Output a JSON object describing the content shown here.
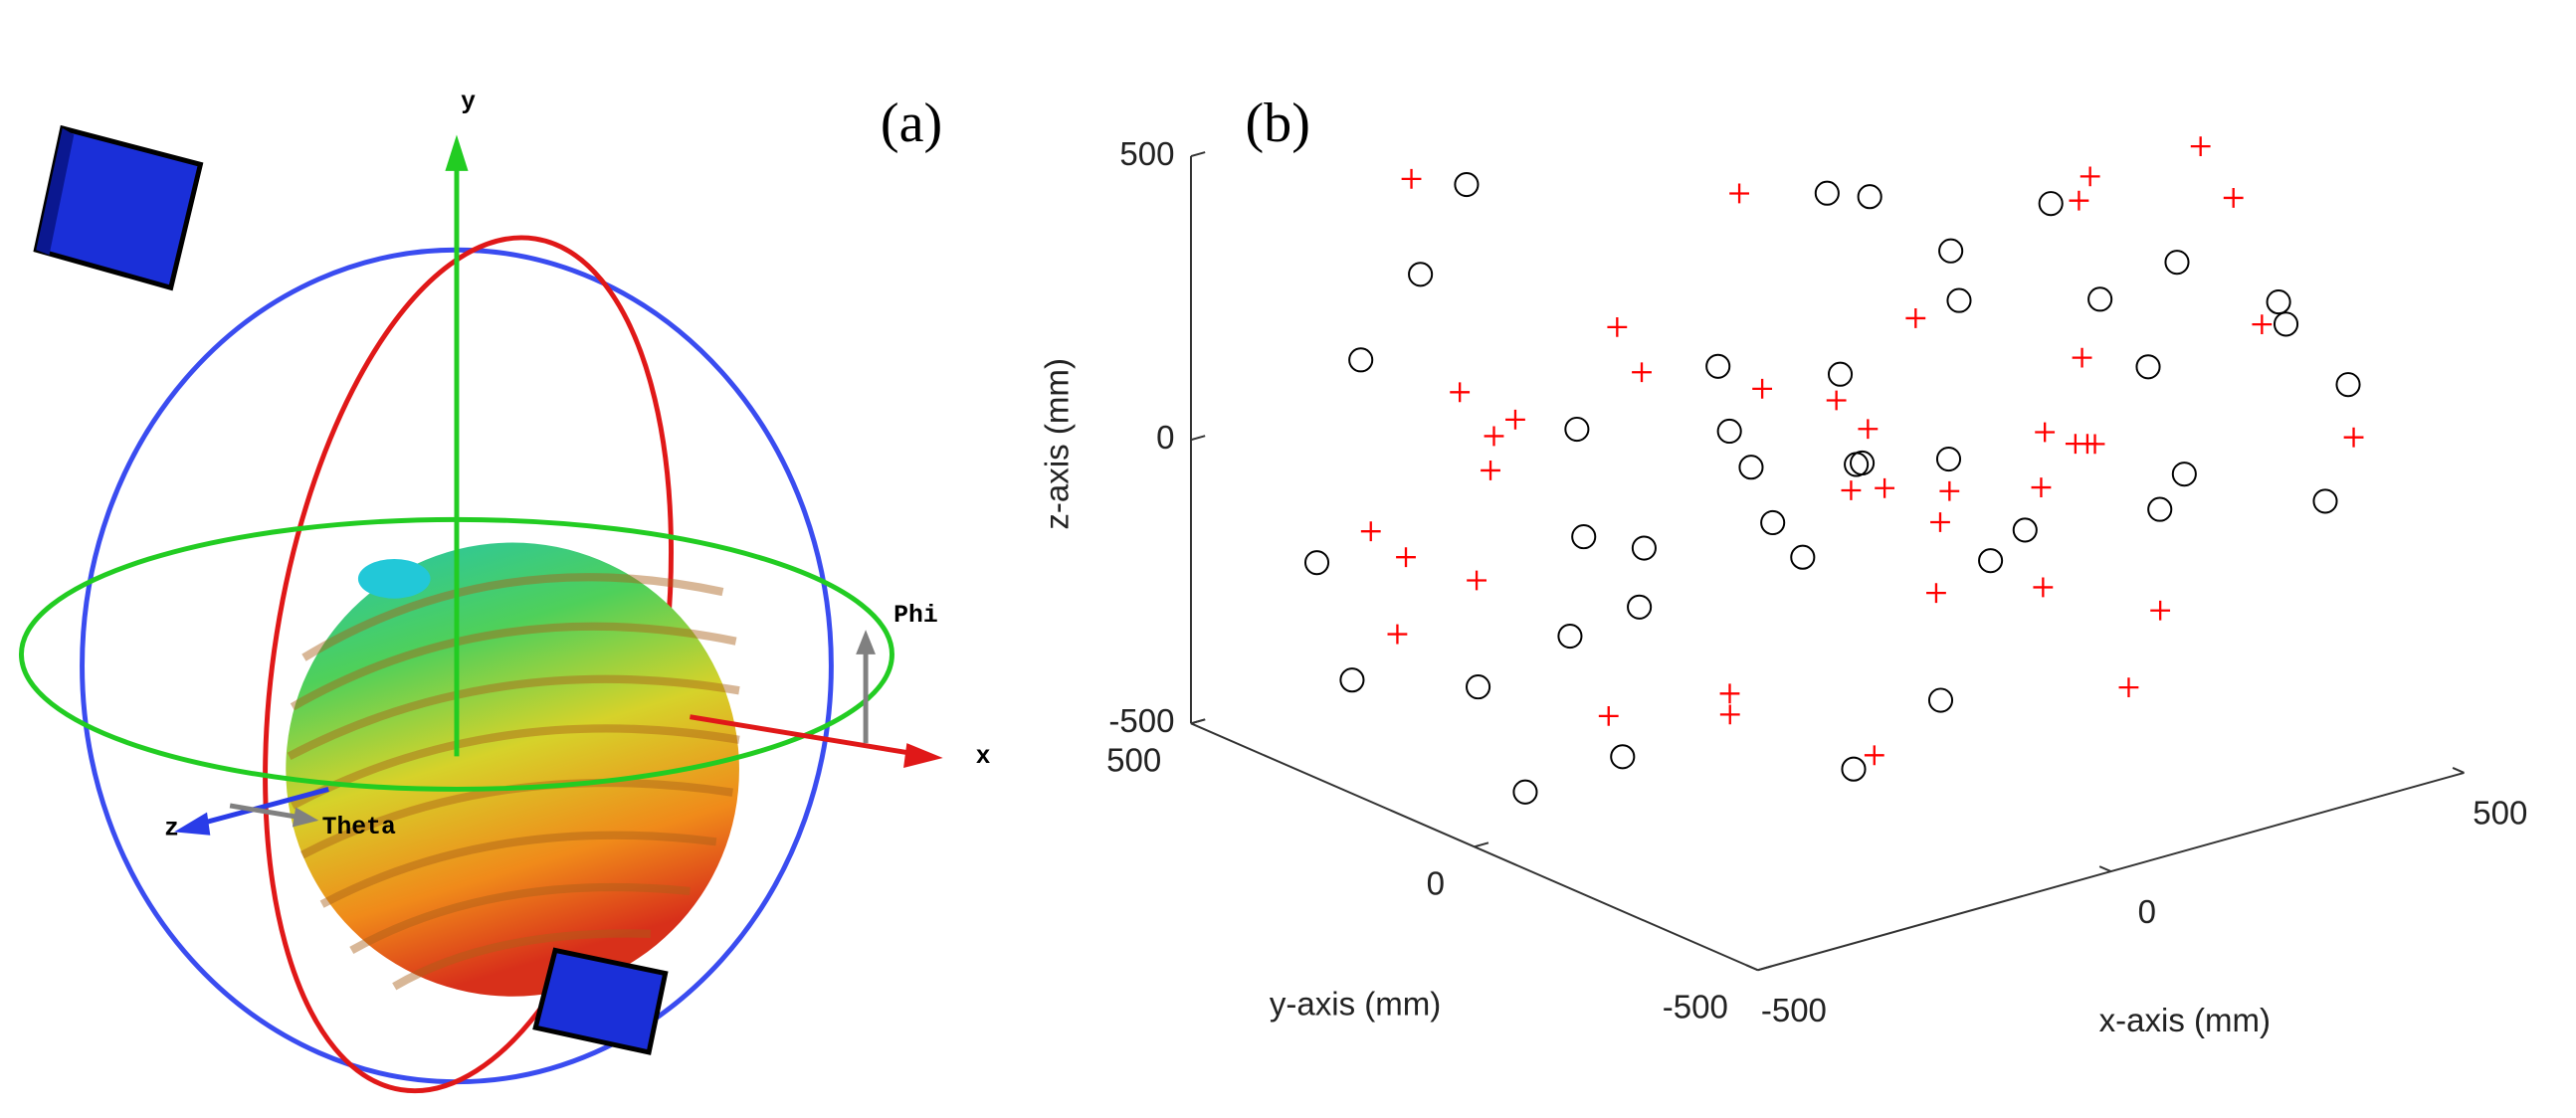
{
  "panel_a": {
    "label": "(a)",
    "axes": {
      "x": "x",
      "y": "y",
      "z": "z",
      "phi": "Phi",
      "theta": "Theta"
    }
  },
  "chart_data": {
    "type": "scatter3d",
    "label": "(b)",
    "xlabel": "x-axis (mm)",
    "ylabel": "y-axis (mm)",
    "zlabel": "z-axis (mm)",
    "xlim": [
      -500,
      500
    ],
    "ylim": [
      -500,
      500
    ],
    "zlim": [
      -500,
      500
    ],
    "xticks": [
      -500,
      0,
      500
    ],
    "yticks": [
      -500,
      0,
      500
    ],
    "zticks": [
      -500,
      0,
      500
    ],
    "series": [
      {
        "color": "#000000",
        "marker": "o",
        "x": [
          -420,
          310,
          -150,
          80,
          450,
          -300,
          200,
          -50,
          370,
          -480,
          120,
          -250,
          430,
          -90,
          260,
          -380,
          40,
          340,
          -200,
          150,
          -460,
          280,
          -130,
          470,
          -10,
          190,
          -340,
          400,
          -270,
          90,
          -410,
          230,
          -60,
          360,
          -180,
          10,
          480,
          -320,
          140,
          -230
        ],
        "y": [
          300,
          -200,
          450,
          -100,
          80,
          -420,
          250,
          -350,
          400,
          120,
          -480,
          50,
          -260,
          330,
          -70,
          -150,
          480,
          210,
          -300,
          360,
          -40,
          -460,
          170,
          20,
          -230,
          430,
          -380,
          150,
          280,
          -120,
          390,
          -330,
          60,
          -470,
          230,
          -10,
          -280,
          440,
          100,
          -190
        ],
        "z": [
          200,
          -100,
          350,
          -400,
          100,
          -250,
          300,
          0,
          -300,
          450,
          150,
          -450,
          250,
          -50,
          400,
          50,
          -350,
          -200,
          200,
          -150,
          -400,
          350,
          -280,
          0,
          480,
          -80,
          120,
          -320,
          -420,
          310,
          -200,
          420,
          -10,
          220,
          -340,
          160,
          -110,
          -460,
          380,
          60
        ]
      },
      {
        "color": "#ff0000",
        "marker": "+",
        "x": [
          -350,
          180,
          -60,
          420,
          -220,
          290,
          30,
          -470,
          380,
          -140,
          250,
          -400,
          110,
          480,
          -280,
          60,
          -180,
          330,
          -30,
          440,
          -320,
          210,
          -100,
          350,
          -450,
          150,
          -240,
          270,
          -10,
          400,
          -370,
          90,
          -200,
          320,
          -80,
          460,
          -300,
          170,
          -130,
          240
        ],
        "y": [
          -50,
          380,
          -290,
          140,
          460,
          -170,
          -400,
          220,
          30,
          -330,
          270,
          90,
          -450,
          -60,
          410,
          190,
          -240,
          340,
          -120,
          -380,
          250,
          70,
          470,
          -280,
          -10,
          -190,
          320,
          -430,
          160,
          40,
          -90,
          440,
          -350,
          200,
          -480,
          110,
          370,
          -260,
          10,
          -150
        ],
        "z": [
          -300,
          250,
          100,
          -150,
          380,
          -420,
          200,
          -50,
          320,
          450,
          -250,
          150,
          -100,
          420,
          -380,
          30,
          280,
          -200,
          -450,
          60,
          130,
          -330,
          -180,
          470,
          240,
          -10,
          -260,
          340,
          -470,
          -120,
          410,
          -60,
          180,
          -300,
          20,
          300,
          -220,
          90,
          -400,
          170
        ]
      }
    ]
  }
}
